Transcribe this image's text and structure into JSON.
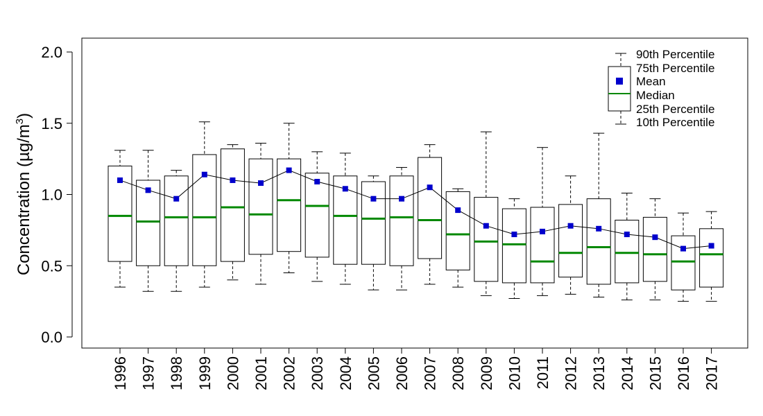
{
  "chart_data": {
    "type": "boxplot",
    "ylabel": "Concentration (µg/m",
    "ylabel_superscript": "3",
    "ylabel_suffix": ")",
    "ylim": [
      0,
      2.05
    ],
    "yticks": [
      0.0,
      0.5,
      1.0,
      1.5,
      2.0
    ],
    "ytick_labels": [
      "0.0",
      "0.5",
      "1.0",
      "1.5",
      "2.0"
    ],
    "categories": [
      "1996",
      "1997",
      "1998",
      "1999",
      "2000",
      "2001",
      "2002",
      "2003",
      "2004",
      "2005",
      "2006",
      "2007",
      "2008",
      "2009",
      "2010",
      "2011",
      "2012",
      "2013",
      "2014",
      "2015",
      "2016",
      "2017"
    ],
    "p10": [
      0.35,
      0.32,
      0.32,
      0.35,
      0.4,
      0.37,
      0.45,
      0.39,
      0.37,
      0.33,
      0.33,
      0.37,
      0.35,
      0.29,
      0.27,
      0.29,
      0.3,
      0.28,
      0.26,
      0.26,
      0.25,
      0.25
    ],
    "p25": [
      0.53,
      0.5,
      0.5,
      0.5,
      0.53,
      0.58,
      0.6,
      0.56,
      0.51,
      0.51,
      0.5,
      0.55,
      0.47,
      0.39,
      0.38,
      0.38,
      0.42,
      0.37,
      0.38,
      0.39,
      0.33,
      0.35
    ],
    "median": [
      0.85,
      0.81,
      0.84,
      0.84,
      0.91,
      0.86,
      0.96,
      0.92,
      0.85,
      0.83,
      0.84,
      0.82,
      0.72,
      0.67,
      0.65,
      0.53,
      0.59,
      0.63,
      0.59,
      0.58,
      0.53,
      0.58
    ],
    "p75": [
      1.2,
      1.1,
      1.13,
      1.28,
      1.32,
      1.25,
      1.25,
      1.15,
      1.13,
      1.09,
      1.13,
      1.26,
      1.02,
      0.98,
      0.9,
      0.91,
      0.93,
      0.97,
      0.82,
      0.84,
      0.71,
      0.76
    ],
    "p90": [
      1.31,
      1.31,
      1.17,
      1.51,
      1.35,
      1.36,
      1.5,
      1.3,
      1.29,
      1.13,
      1.19,
      1.35,
      1.04,
      1.44,
      0.97,
      1.33,
      1.13,
      1.43,
      1.01,
      0.97,
      0.87,
      0.88
    ],
    "mean": [
      1.1,
      1.03,
      0.97,
      1.14,
      1.1,
      1.08,
      1.17,
      1.09,
      1.04,
      0.97,
      0.97,
      1.05,
      0.89,
      0.78,
      0.72,
      0.74,
      0.78,
      0.76,
      0.72,
      0.7,
      0.62,
      0.64
    ],
    "legend": {
      "items": [
        "90th Percentile",
        "75th Percentile",
        "Mean",
        "Median",
        "25th Percentile",
        "10th Percentile"
      ],
      "placement": "top-right"
    },
    "colors": {
      "mean": "#0000cc",
      "median": "#008800",
      "box": "#000000",
      "line": "#000000"
    }
  }
}
